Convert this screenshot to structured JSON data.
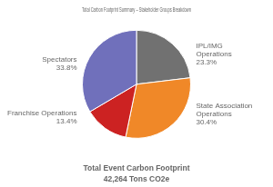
{
  "chart_data": {
    "type": "pie",
    "title": "Total Carbon Footprint Summary – Stakeholder Groups Breakdown",
    "categories": [
      "IPL/IMG\nOperations",
      "State Association\nOperations",
      "Franchise Operations",
      "Spectators"
    ],
    "values": [
      23.3,
      30.4,
      13.4,
      33.8
    ],
    "value_labels": [
      "23.3%",
      "30.4%",
      "13.4%",
      "33.8%"
    ],
    "data_labels": true,
    "colors": [
      "#717171",
      "#f08828",
      "#cc2222",
      "#7070bb"
    ],
    "annotations": [
      "Total Event Carbon Footprint",
      "42,264 Tons CO2e"
    ]
  }
}
